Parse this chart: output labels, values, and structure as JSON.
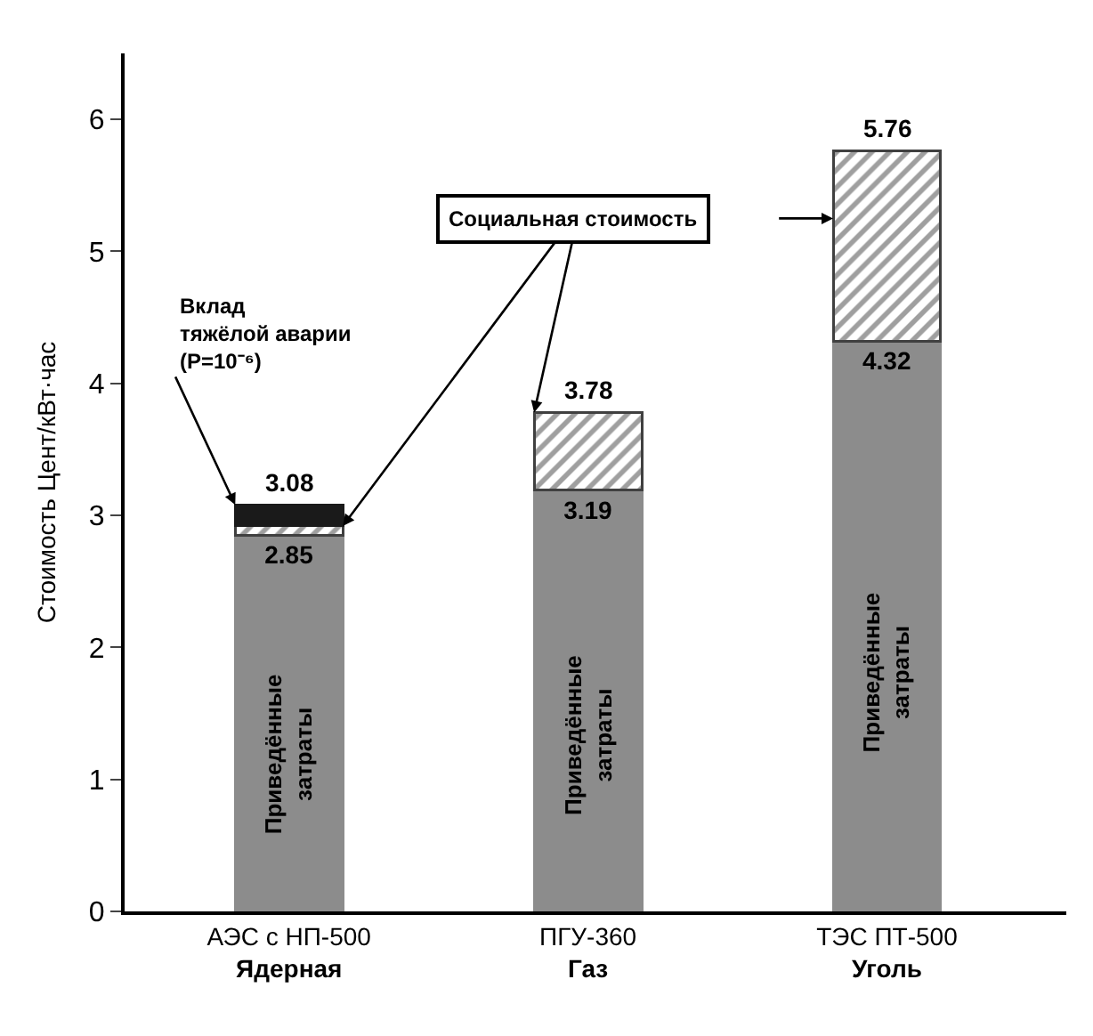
{
  "chart_data": {
    "type": "bar",
    "stacked": true,
    "categories": [
      "АЭС с НП-500\nЯдерная",
      "ПГУ-360\nГаз",
      "ТЭС ПТ-500\nУголь"
    ],
    "ylabel": "Стоимость Цент/кВт·час",
    "ylim": [
      0,
      6.5
    ],
    "yticks": [
      0,
      1,
      2,
      3,
      4,
      5,
      6
    ],
    "legend": false,
    "series": [
      {
        "name": "Приведённые затраты",
        "color": "#8c8c8c",
        "values": [
          2.85,
          3.19,
          4.32
        ],
        "value_labels": [
          "2.85",
          "3.19",
          "4.32"
        ]
      },
      {
        "name": "Социальная стоимость",
        "color": "#404040",
        "values": [
          0.07,
          0.59,
          1.44
        ]
      },
      {
        "name": "Вклад тяжёлой аварии (P=10⁻⁶)",
        "color": "#1a1a1a",
        "values": [
          0.16,
          null,
          null
        ]
      }
    ],
    "totals": [
      "3.08",
      "3.78",
      "5.76"
    ]
  }
}
